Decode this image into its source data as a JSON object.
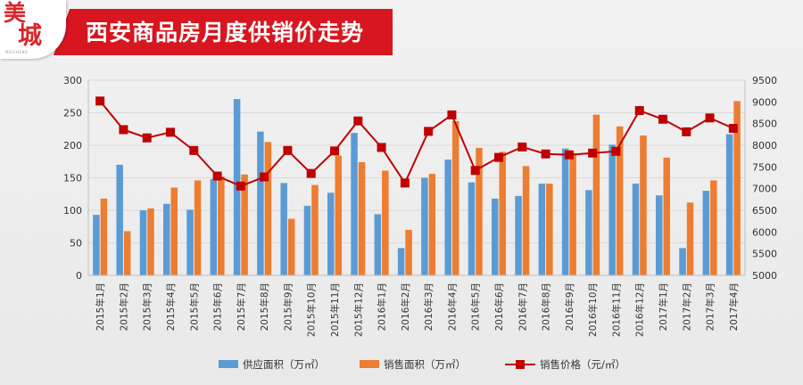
{
  "header": {
    "title": "西安商品房月度供销价走势",
    "logo_char_1": "美",
    "logo_char_2": "城",
    "logo_subtext": "MEICHENG"
  },
  "colors": {
    "banner_red": "#d7161f",
    "supply": "#5b9bd5",
    "sales": "#ed7d31",
    "price": "#c00000",
    "grid": "#d9d9d9"
  },
  "chart_data": {
    "type": "bar",
    "title": "",
    "categories": [
      "2015年1月",
      "2015年2月",
      "2015年3月",
      "2015年4月",
      "2015年5月",
      "2015年6月",
      "2015年7月",
      "2015年8月",
      "2015年9月",
      "2015年10月",
      "2015年11月",
      "2015年12月",
      "2016年1月",
      "2016年2月",
      "2016年3月",
      "2016年4月",
      "2016年5月",
      "2016年6月",
      "2016年7月",
      "2016年8月",
      "2016年9月",
      "2016年10月",
      "2016年11月",
      "2016年12月",
      "2017年1月",
      "2017年2月",
      "2017年3月",
      "2017年4月"
    ],
    "series": [
      {
        "name": "供应面积（万㎡）",
        "type": "bar",
        "axis": "left",
        "values": [
          93,
          170,
          100,
          110,
          101,
          148,
          271,
          221,
          142,
          107,
          127,
          219,
          94,
          42,
          150,
          178,
          143,
          118,
          122,
          141,
          195,
          131,
          201,
          141,
          123,
          42,
          130,
          217
        ]
      },
      {
        "name": "销售面积（万㎡）",
        "type": "bar",
        "axis": "left",
        "values": [
          118,
          68,
          103,
          135,
          146,
          152,
          155,
          205,
          87,
          139,
          184,
          174,
          161,
          70,
          156,
          237,
          196,
          190,
          168,
          141,
          188,
          247,
          229,
          215,
          181,
          112,
          146,
          268
        ]
      },
      {
        "name": "销售价格（元/㎡）",
        "type": "line",
        "axis": "right",
        "values": [
          9020,
          8360,
          8170,
          8300,
          7880,
          7290,
          7060,
          7270,
          7880,
          7350,
          7870,
          8560,
          7950,
          7130,
          8320,
          8700,
          7420,
          7720,
          7960,
          7800,
          7780,
          7820,
          7860,
          8800,
          8600,
          8310,
          8630,
          8390
        ]
      }
    ],
    "ylim_left": [
      0,
      300
    ],
    "yticks_left": [
      0,
      50,
      100,
      150,
      200,
      250,
      300
    ],
    "ylim_right": [
      5000,
      9500
    ],
    "yticks_right": [
      5000,
      5500,
      6000,
      6500,
      7000,
      7500,
      8000,
      8500,
      9000,
      9500
    ],
    "xlabel": "",
    "ylabel": "",
    "grid": true,
    "legend_position": "bottom"
  }
}
